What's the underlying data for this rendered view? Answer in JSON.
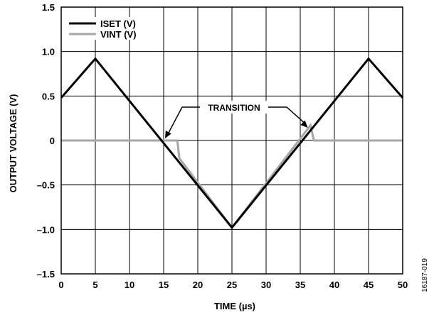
{
  "chart_data": {
    "type": "line",
    "xlabel": "TIME (µs)",
    "ylabel": "OUTPUT VOLTAGE (V)",
    "xlim": [
      0,
      50
    ],
    "ylim": [
      -1.5,
      1.5
    ],
    "x_ticks": [
      0,
      5,
      10,
      15,
      20,
      25,
      30,
      35,
      40,
      45,
      50
    ],
    "y_ticks": [
      1.5,
      1.0,
      0.5,
      0,
      -0.5,
      -1.0,
      -1.5
    ],
    "x_tick_labels": [
      "0",
      "5",
      "10",
      "15",
      "20",
      "25",
      "30",
      "35",
      "40",
      "45",
      "50"
    ],
    "y_tick_labels": [
      "1.5",
      "1.0",
      "0.5",
      "0",
      "–0.5",
      "–1.0",
      "–1.5"
    ],
    "grid": true,
    "legend_position": "top-left",
    "series": [
      {
        "name": "ISET (V)",
        "color": "#000000",
        "x": [
          0,
          5,
          25,
          45,
          50
        ],
        "y": [
          0.48,
          0.92,
          -0.98,
          0.92,
          0.48
        ]
      },
      {
        "name": "VINT (V)",
        "color": "#a6a6a6",
        "x": [
          0,
          17,
          17.3,
          25,
          36.5,
          37,
          50
        ],
        "y": [
          0,
          0,
          -0.2,
          -0.98,
          0.17,
          0,
          0
        ]
      }
    ],
    "annotations": [
      {
        "text": "TRANSITION",
        "arrow_targets": [
          [
            15,
            0
          ],
          [
            36,
            0.12
          ]
        ]
      }
    ],
    "figure_id": "16187-019"
  }
}
